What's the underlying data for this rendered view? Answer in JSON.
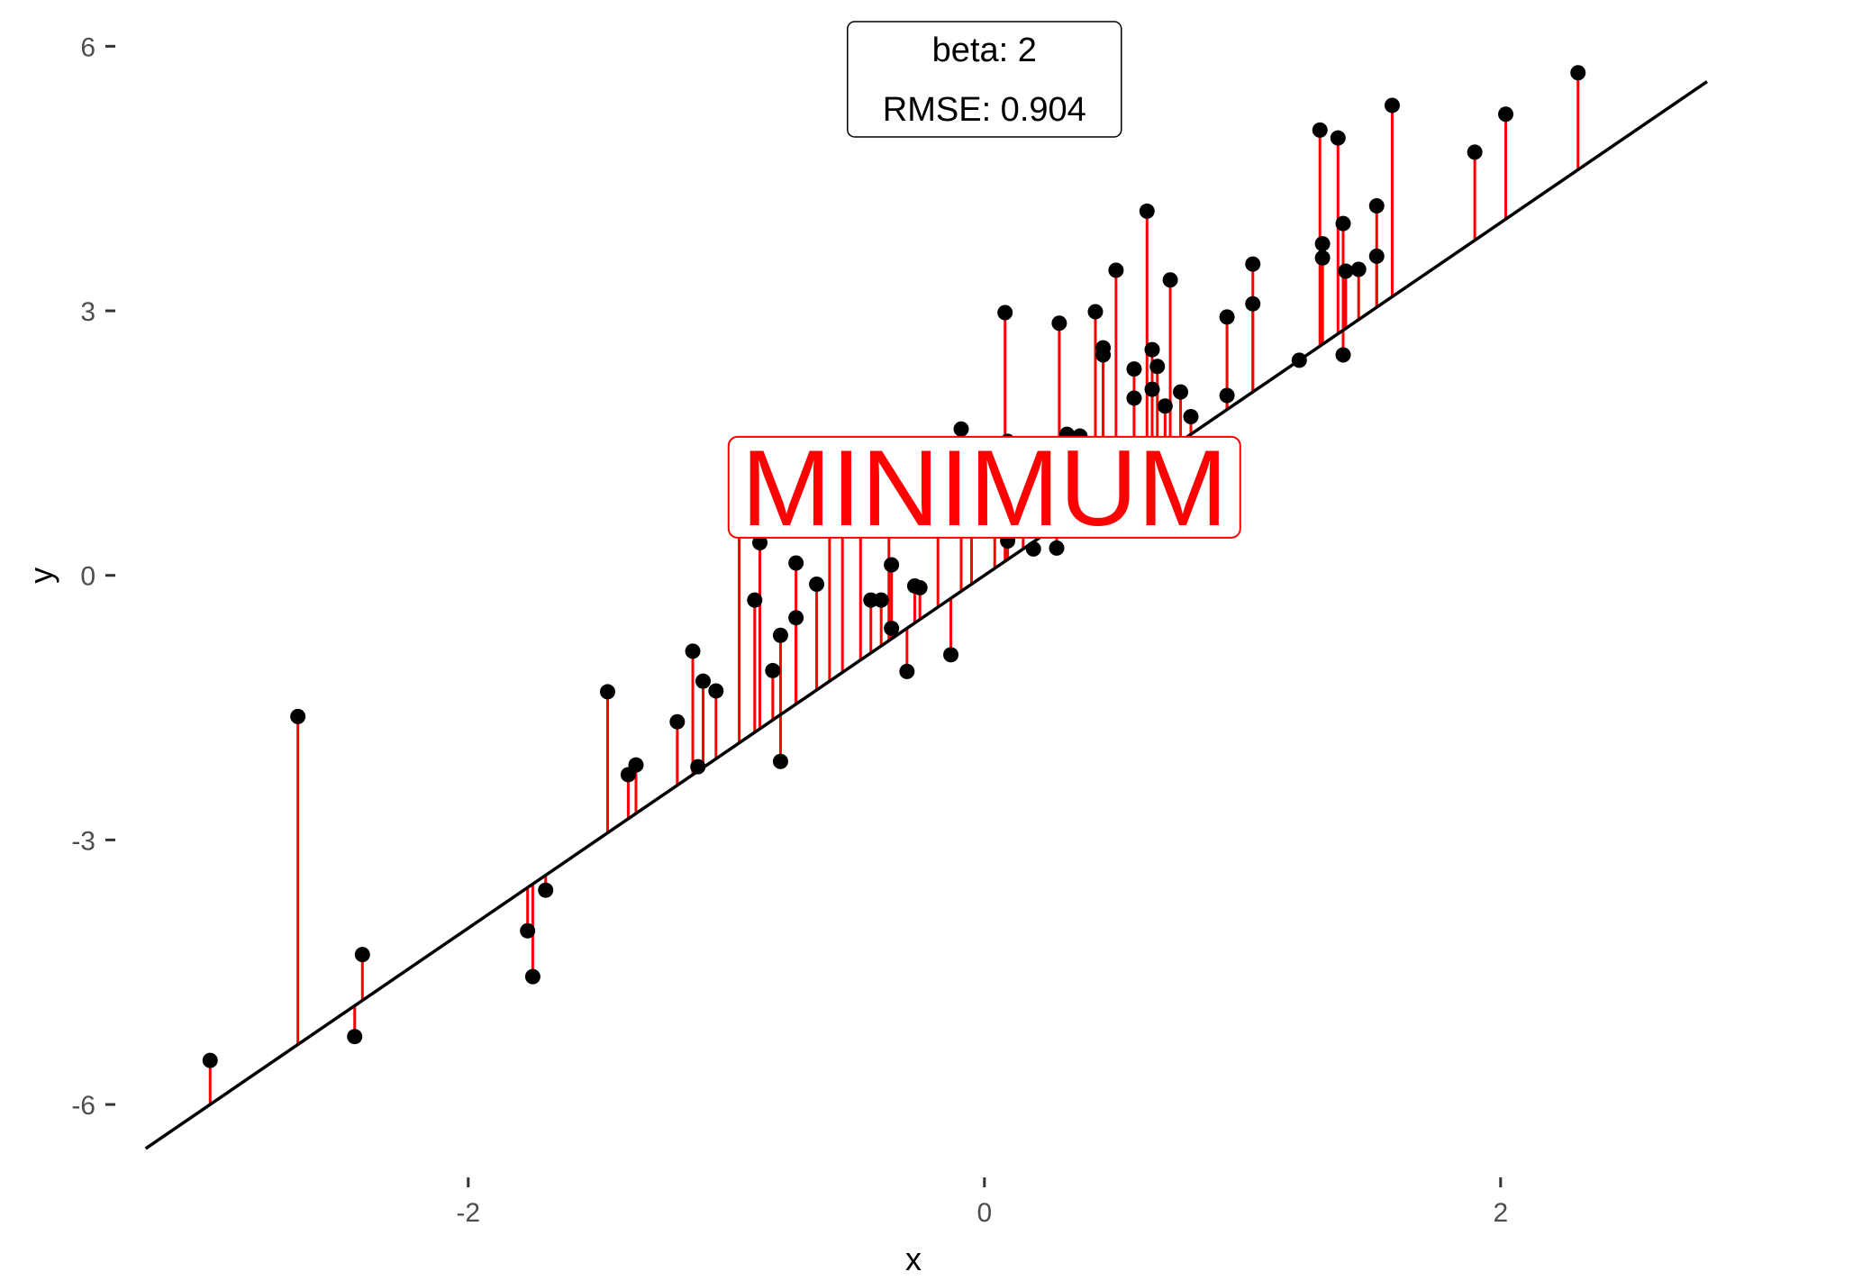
{
  "chart_data": {
    "type": "scatter",
    "xlabel": "x",
    "ylabel": "y",
    "xlim": [
      -3.35,
      2.8
    ],
    "ylim": [
      -6.5,
      6.3
    ],
    "x_ticks": [
      -2,
      0,
      2
    ],
    "x_tick_labels": [
      "-2",
      "0",
      "2"
    ],
    "y_ticks": [
      -6,
      -3,
      0,
      3,
      6
    ],
    "y_tick_labels": [
      "-6",
      "-3",
      "0",
      "3",
      "6"
    ],
    "grid": false,
    "fit_line": {
      "slope": 2,
      "intercept": 0,
      "color": "#000000"
    },
    "residual_color": "#ff0000",
    "point_color": "#000000",
    "annotation": {
      "line1": "beta: 2",
      "line2": "RMSE: 0.904",
      "x": 0,
      "y": 5.8
    },
    "banner": {
      "text": "MINIMUM",
      "x": 0,
      "y": 1.0,
      "color": "#ff0000"
    },
    "points": [
      [
        -3.0,
        -5.5
      ],
      [
        -2.66,
        -1.6
      ],
      [
        -2.44,
        -5.23
      ],
      [
        -2.41,
        -4.3
      ],
      [
        -1.77,
        -4.03
      ],
      [
        -1.75,
        -4.55
      ],
      [
        -1.7,
        -3.57
      ],
      [
        -1.46,
        -1.32
      ],
      [
        -1.38,
        -2.26
      ],
      [
        -1.35,
        -2.15
      ],
      [
        -1.19,
        -1.66
      ],
      [
        -1.13,
        -0.86
      ],
      [
        -1.11,
        -2.17
      ],
      [
        -1.09,
        -1.2
      ],
      [
        -1.04,
        -1.31
      ],
      [
        -0.95,
        0.98
      ],
      [
        -0.89,
        -0.28
      ],
      [
        -0.87,
        0.37
      ],
      [
        -0.82,
        -1.08
      ],
      [
        -0.79,
        -0.68
      ],
      [
        -0.79,
        -2.11
      ],
      [
        -0.73,
        -0.48
      ],
      [
        -0.73,
        0.14
      ],
      [
        -0.65,
        -0.1
      ],
      [
        -0.6,
        0.6
      ],
      [
        -0.55,
        0.72
      ],
      [
        -0.48,
        0.8
      ],
      [
        -0.44,
        -0.28
      ],
      [
        -0.4,
        -0.28
      ],
      [
        -0.37,
        0.66
      ],
      [
        -0.36,
        0.12
      ],
      [
        -0.36,
        -0.6
      ],
      [
        -0.3,
        -1.09
      ],
      [
        -0.27,
        -0.12
      ],
      [
        -0.25,
        -0.14
      ],
      [
        -0.18,
        0.9
      ],
      [
        -0.13,
        -0.9
      ],
      [
        -0.09,
        1.66
      ],
      [
        -0.05,
        1.1
      ],
      [
        0.04,
        0.73
      ],
      [
        0.08,
        2.98
      ],
      [
        0.09,
        1.52
      ],
      [
        0.09,
        0.39
      ],
      [
        0.15,
        0.75
      ],
      [
        0.19,
        0.3
      ],
      [
        0.23,
        0.65
      ],
      [
        0.28,
        0.31
      ],
      [
        0.29,
        2.86
      ],
      [
        0.32,
        1.6
      ],
      [
        0.37,
        1.58
      ],
      [
        0.43,
        2.99
      ],
      [
        0.46,
        2.5
      ],
      [
        0.46,
        2.58
      ],
      [
        0.51,
        3.46
      ],
      [
        0.58,
        2.34
      ],
      [
        0.58,
        2.01
      ],
      [
        0.63,
        4.13
      ],
      [
        0.65,
        2.56
      ],
      [
        0.65,
        2.11
      ],
      [
        0.67,
        2.37
      ],
      [
        0.7,
        1.92
      ],
      [
        0.72,
        3.35
      ],
      [
        0.76,
        2.08
      ],
      [
        0.8,
        1.8
      ],
      [
        0.94,
        2.93
      ],
      [
        0.94,
        2.04
      ],
      [
        1.04,
        3.08
      ],
      [
        1.04,
        3.53
      ],
      [
        1.22,
        2.44
      ],
      [
        1.3,
        5.05
      ],
      [
        1.31,
        3.6
      ],
      [
        1.31,
        3.76
      ],
      [
        1.37,
        4.96
      ],
      [
        1.39,
        2.5
      ],
      [
        1.39,
        3.99
      ],
      [
        1.4,
        3.45
      ],
      [
        1.45,
        3.47
      ],
      [
        1.52,
        3.62
      ],
      [
        1.52,
        4.19
      ],
      [
        1.58,
        5.33
      ],
      [
        1.9,
        4.8
      ],
      [
        2.02,
        5.23
      ],
      [
        2.3,
        5.7
      ]
    ]
  }
}
